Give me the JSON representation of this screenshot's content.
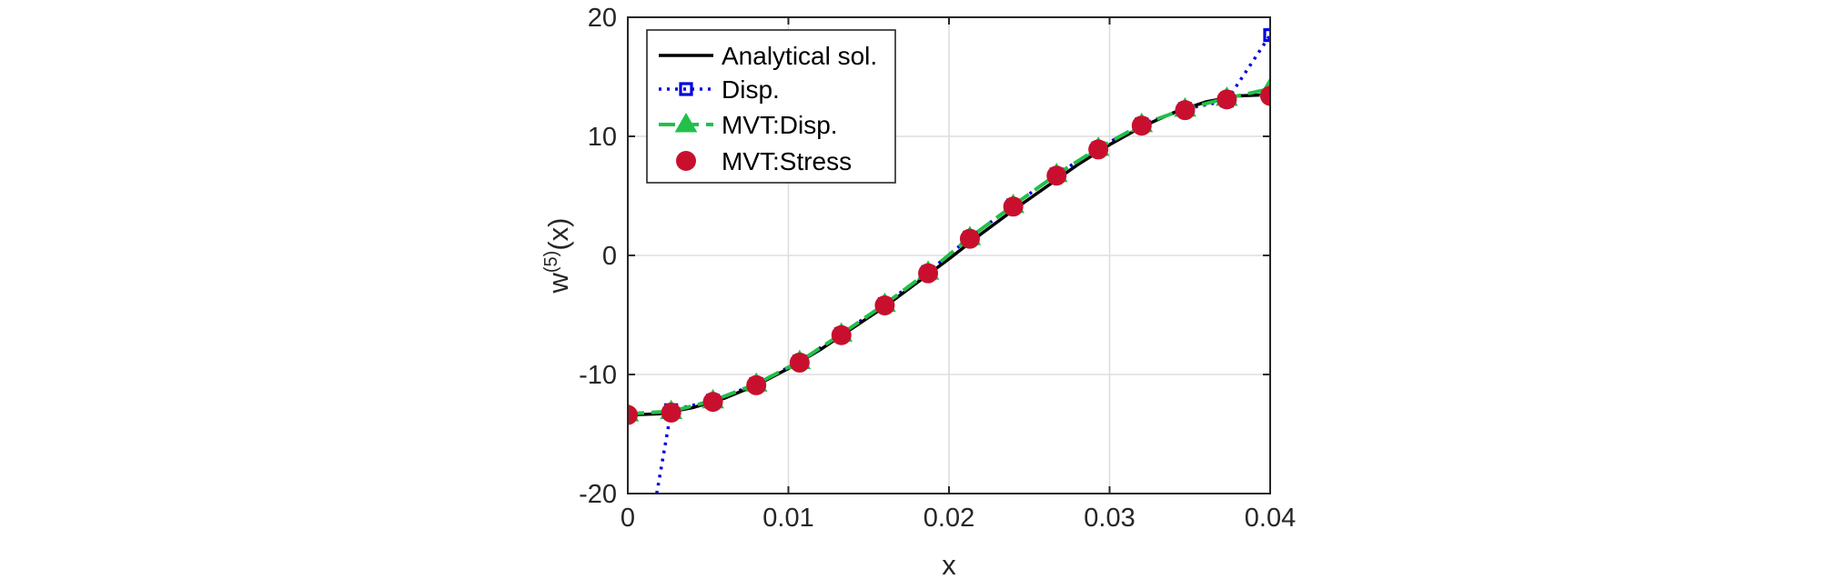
{
  "chart_data": {
    "type": "line",
    "title": "",
    "xlabel": "x",
    "ylabel_base": "w",
    "ylabel_sup": "(5)",
    "ylabel_tail": "(x)",
    "xlim": [
      0,
      0.04
    ],
    "ylim": [
      -20,
      20
    ],
    "xticks": [
      0,
      0.01,
      0.02,
      0.03,
      0.04
    ],
    "xtick_labels": [
      "0",
      "0.01",
      "0.02",
      "0.03",
      "0.04"
    ],
    "yticks": [
      -20,
      -10,
      0,
      10,
      20
    ],
    "ytick_labels": [
      "-20",
      "-10",
      "0",
      "10",
      "20"
    ],
    "grid": true,
    "legend_position": "top-left",
    "series": [
      {
        "name": "Analytical sol.",
        "style": "solid",
        "marker": "none",
        "color": "#000000",
        "x": [
          0,
          0.002,
          0.004,
          0.006,
          0.008,
          0.01,
          0.012,
          0.014,
          0.016,
          0.018,
          0.02,
          0.022,
          0.024,
          0.026,
          0.028,
          0.03,
          0.032,
          0.034,
          0.036,
          0.038,
          0.04
        ],
        "y": [
          -13.4,
          -13.3,
          -12.8,
          -12.0,
          -10.9,
          -9.5,
          -7.9,
          -6.1,
          -4.3,
          -2.3,
          -0.3,
          1.8,
          3.8,
          5.7,
          7.6,
          9.3,
          10.8,
          12.0,
          12.9,
          13.4,
          13.5
        ]
      },
      {
        "name": "Disp.",
        "style": "dotted",
        "marker": "square",
        "color": "#0000e0",
        "x": [
          0.0018,
          0.0027,
          0.0053,
          0.008,
          0.0107,
          0.0133,
          0.016,
          0.0187,
          0.0213,
          0.024,
          0.0267,
          0.0293,
          0.032,
          0.0347,
          0.0373,
          0.04
        ],
        "y": [
          -20,
          -13.0,
          -12.2,
          -10.8,
          -8.9,
          -6.6,
          -4.1,
          -1.4,
          1.5,
          4.2,
          6.8,
          9.0,
          11.0,
          12.3,
          13.0,
          18.5
        ]
      },
      {
        "name": "MVT:Disp.",
        "style": "dashed",
        "marker": "triangle",
        "color": "#22c04a",
        "x": [
          0,
          0.0027,
          0.0053,
          0.008,
          0.0107,
          0.0133,
          0.016,
          0.0187,
          0.0213,
          0.024,
          0.0267,
          0.0293,
          0.032,
          0.0347,
          0.0373,
          0.04
        ],
        "y": [
          -13.3,
          -13.1,
          -12.2,
          -10.8,
          -8.9,
          -6.6,
          -4.1,
          -1.4,
          1.5,
          4.2,
          6.8,
          9.0,
          11.0,
          12.3,
          13.2,
          14.0
        ]
      },
      {
        "name": "MVT:Stress",
        "style": "none",
        "marker": "circle",
        "color": "#c8102e",
        "x": [
          0,
          0.0027,
          0.0053,
          0.008,
          0.0107,
          0.0133,
          0.016,
          0.0187,
          0.0213,
          0.024,
          0.0267,
          0.0293,
          0.032,
          0.0347,
          0.0373,
          0.04
        ],
        "y": [
          -13.4,
          -13.2,
          -12.3,
          -10.9,
          -9.0,
          -6.7,
          -4.2,
          -1.5,
          1.4,
          4.1,
          6.7,
          8.9,
          10.9,
          12.2,
          13.1,
          13.4
        ]
      }
    ]
  }
}
